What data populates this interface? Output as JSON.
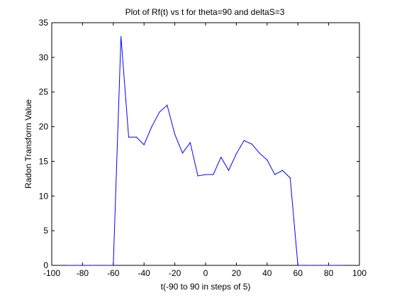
{
  "colors": {
    "background": "#ffffff",
    "axes": "#000000",
    "series": "#0000ff"
  },
  "chart_data": {
    "type": "line",
    "title": "Plot of Rf(t) vs t for theta=90 and deltaS=3",
    "xlabel": "t(-90 to 90 in steps of 5)",
    "ylabel": "Radon Transform Value",
    "xlim": [
      -100,
      100
    ],
    "ylim": [
      0,
      35
    ],
    "xticks": [
      -100,
      -80,
      -60,
      -40,
      -20,
      0,
      20,
      40,
      60,
      80,
      100
    ],
    "yticks": [
      0,
      5,
      10,
      15,
      20,
      25,
      30,
      35
    ],
    "grid": false,
    "legend": "none",
    "series": [
      {
        "x": [
          -90,
          -85,
          -80,
          -75,
          -70,
          -65,
          -60,
          -55,
          -50,
          -45,
          -40,
          -35,
          -30,
          -25,
          -20,
          -15,
          -10,
          -5,
          0,
          5,
          10,
          15,
          20,
          25,
          30,
          35,
          40,
          45,
          50,
          55,
          60,
          65,
          70,
          75,
          80,
          85,
          90
        ],
        "y": [
          0,
          0,
          0,
          0,
          0,
          0,
          0,
          33.0,
          18.5,
          18.5,
          17.4,
          20.0,
          22.1,
          23.1,
          18.9,
          16.2,
          17.7,
          12.9,
          13.1,
          13.1,
          15.6,
          13.7,
          16.1,
          18.0,
          17.5,
          16.2,
          15.2,
          13.1,
          13.7,
          12.6,
          0,
          0,
          0,
          0,
          0,
          0,
          0
        ]
      }
    ]
  }
}
